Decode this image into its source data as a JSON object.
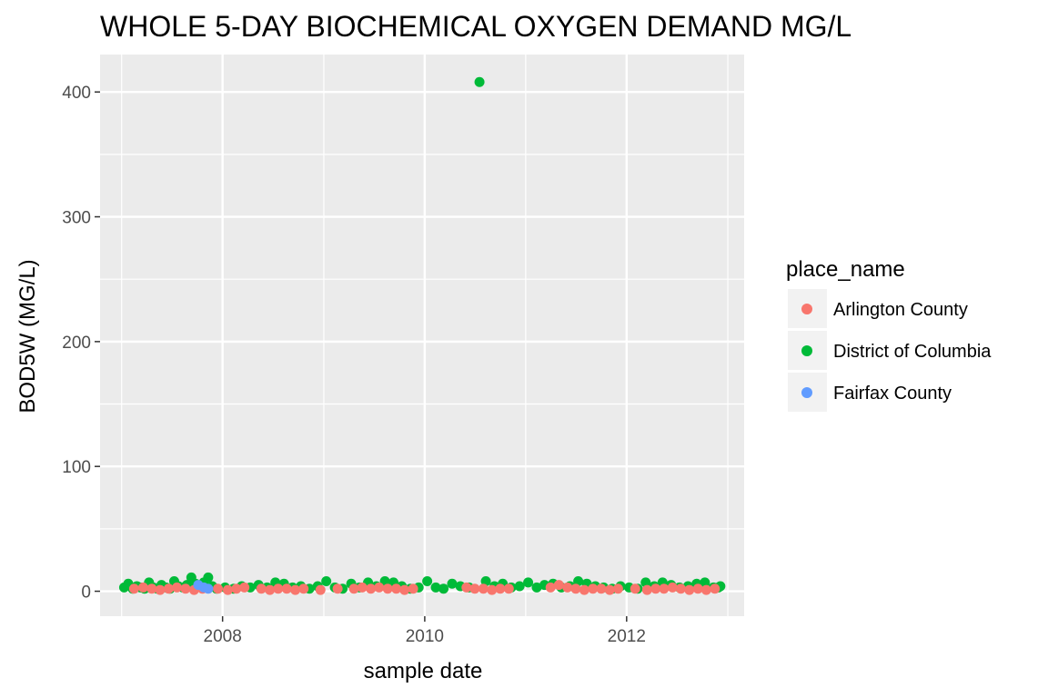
{
  "chart_data": {
    "type": "scatter",
    "title": "WHOLE 5-DAY BIOCHEMICAL OXYGEN DEMAND MG/L",
    "xlabel": "sample date",
    "ylabel": "BOD5W (MG/L)",
    "x_axis_type": "date",
    "xlim": [
      "2006-10-15",
      "2013-03-01"
    ],
    "ylim": [
      -20,
      430
    ],
    "x_ticks": [
      "2008",
      "2010",
      "2012"
    ],
    "y_ticks": [
      "0",
      "100",
      "200",
      "300",
      "400"
    ],
    "grid": true,
    "panel_background": "#ebebeb",
    "legend": {
      "title": "place_name",
      "position": "right",
      "entries": [
        "Arlington County",
        "District of Columbia",
        "Fairfax County"
      ]
    },
    "series": [
      {
        "name": "District of Columbia",
        "color": "#00ba38",
        "points": [
          [
            "2007-01-10",
            3
          ],
          [
            "2007-01-25",
            6
          ],
          [
            "2007-02-10",
            2
          ],
          [
            "2007-02-25",
            4
          ],
          [
            "2007-03-10",
            3
          ],
          [
            "2007-03-25",
            2
          ],
          [
            "2007-04-10",
            7
          ],
          [
            "2007-04-25",
            3
          ],
          [
            "2007-05-10",
            2
          ],
          [
            "2007-05-25",
            5
          ],
          [
            "2007-06-10",
            3
          ],
          [
            "2007-06-25",
            2
          ],
          [
            "2007-07-10",
            8
          ],
          [
            "2007-07-25",
            4
          ],
          [
            "2007-08-10",
            3
          ],
          [
            "2007-08-25",
            5
          ],
          [
            "2007-09-10",
            11
          ],
          [
            "2007-09-25",
            6
          ],
          [
            "2007-10-10",
            4
          ],
          [
            "2007-10-25",
            7
          ],
          [
            "2007-11-10",
            11
          ],
          [
            "2007-11-25",
            4
          ],
          [
            "2007-12-10",
            2
          ],
          [
            "2008-01-10",
            3
          ],
          [
            "2008-02-10",
            2
          ],
          [
            "2008-03-10",
            4
          ],
          [
            "2008-04-10",
            3
          ],
          [
            "2008-05-10",
            5
          ],
          [
            "2008-06-10",
            3
          ],
          [
            "2008-07-10",
            7
          ],
          [
            "2008-08-10",
            6
          ],
          [
            "2008-09-10",
            3
          ],
          [
            "2008-10-10",
            4
          ],
          [
            "2008-11-10",
            2
          ],
          [
            "2008-12-10",
            4
          ],
          [
            "2009-01-10",
            8
          ],
          [
            "2009-02-10",
            3
          ],
          [
            "2009-03-10",
            2
          ],
          [
            "2009-04-10",
            6
          ],
          [
            "2009-05-10",
            3
          ],
          [
            "2009-06-10",
            7
          ],
          [
            "2009-07-10",
            4
          ],
          [
            "2009-08-10",
            8
          ],
          [
            "2009-09-10",
            7
          ],
          [
            "2009-10-10",
            4
          ],
          [
            "2009-11-10",
            2
          ],
          [
            "2009-12-10",
            3
          ],
          [
            "2010-01-10",
            8
          ],
          [
            "2010-02-10",
            3
          ],
          [
            "2010-03-10",
            2
          ],
          [
            "2010-04-10",
            6
          ],
          [
            "2010-05-10",
            4
          ],
          [
            "2010-06-10",
            3
          ],
          [
            "2010-07-18",
            408
          ],
          [
            "2010-08-10",
            8
          ],
          [
            "2010-09-10",
            4
          ],
          [
            "2010-10-10",
            6
          ],
          [
            "2010-11-10",
            3
          ],
          [
            "2010-12-10",
            4
          ],
          [
            "2011-01-10",
            7
          ],
          [
            "2011-02-10",
            3
          ],
          [
            "2011-03-10",
            5
          ],
          [
            "2011-04-10",
            6
          ],
          [
            "2011-05-10",
            3
          ],
          [
            "2011-06-10",
            4
          ],
          [
            "2011-07-10",
            8
          ],
          [
            "2011-08-10",
            6
          ],
          [
            "2011-09-10",
            4
          ],
          [
            "2011-10-10",
            3
          ],
          [
            "2011-11-10",
            2
          ],
          [
            "2011-12-10",
            4
          ],
          [
            "2012-01-10",
            3
          ],
          [
            "2012-02-10",
            2
          ],
          [
            "2012-03-10",
            7
          ],
          [
            "2012-04-10",
            4
          ],
          [
            "2012-05-10",
            7
          ],
          [
            "2012-06-10",
            5
          ],
          [
            "2012-07-10",
            3
          ],
          [
            "2012-08-10",
            4
          ],
          [
            "2012-09-10",
            6
          ],
          [
            "2012-10-10",
            7
          ],
          [
            "2012-11-10",
            3
          ],
          [
            "2012-11-28",
            3
          ],
          [
            "2012-12-05",
            4
          ]
        ]
      },
      {
        "name": "Arlington County",
        "color": "#f8766d",
        "points": [
          [
            "2007-02-15",
            2
          ],
          [
            "2007-03-20",
            3
          ],
          [
            "2007-04-20",
            2
          ],
          [
            "2007-05-20",
            1
          ],
          [
            "2007-06-20",
            2
          ],
          [
            "2007-07-20",
            3
          ],
          [
            "2007-08-20",
            2
          ],
          [
            "2007-09-20",
            1
          ],
          [
            "2007-10-20",
            2
          ],
          [
            "2007-12-15",
            2
          ],
          [
            "2008-01-20",
            1
          ],
          [
            "2008-02-20",
            2
          ],
          [
            "2008-03-20",
            3
          ],
          [
            "2008-05-20",
            2
          ],
          [
            "2008-06-20",
            1
          ],
          [
            "2008-07-20",
            2
          ],
          [
            "2008-08-20",
            2
          ],
          [
            "2008-09-20",
            1
          ],
          [
            "2008-10-20",
            2
          ],
          [
            "2008-12-20",
            1
          ],
          [
            "2009-02-20",
            2
          ],
          [
            "2009-04-20",
            2
          ],
          [
            "2009-05-20",
            3
          ],
          [
            "2009-06-20",
            2
          ],
          [
            "2009-07-20",
            3
          ],
          [
            "2009-08-20",
            2
          ],
          [
            "2009-09-20",
            2
          ],
          [
            "2009-10-20",
            1
          ],
          [
            "2009-11-20",
            2
          ],
          [
            "2010-06-01",
            3
          ],
          [
            "2010-07-01",
            2
          ],
          [
            "2010-08-01",
            2
          ],
          [
            "2010-09-01",
            1
          ],
          [
            "2010-10-01",
            2
          ],
          [
            "2010-11-01",
            2
          ],
          [
            "2011-04-01",
            3
          ],
          [
            "2011-05-01",
            5
          ],
          [
            "2011-06-01",
            3
          ],
          [
            "2011-07-01",
            2
          ],
          [
            "2011-08-01",
            1
          ],
          [
            "2011-09-01",
            2
          ],
          [
            "2011-10-01",
            2
          ],
          [
            "2011-11-01",
            1
          ],
          [
            "2011-12-01",
            2
          ],
          [
            "2012-02-01",
            2
          ],
          [
            "2012-03-15",
            1
          ],
          [
            "2012-04-15",
            2
          ],
          [
            "2012-05-15",
            2
          ],
          [
            "2012-06-15",
            3
          ],
          [
            "2012-07-15",
            2
          ],
          [
            "2012-08-15",
            1
          ],
          [
            "2012-09-15",
            2
          ],
          [
            "2012-10-15",
            1
          ],
          [
            "2012-11-15",
            2
          ]
        ]
      },
      {
        "name": "Fairfax County",
        "color": "#619cff",
        "points": [
          [
            "2007-10-05",
            5
          ],
          [
            "2007-10-25",
            3
          ],
          [
            "2007-11-10",
            2
          ]
        ]
      }
    ]
  }
}
